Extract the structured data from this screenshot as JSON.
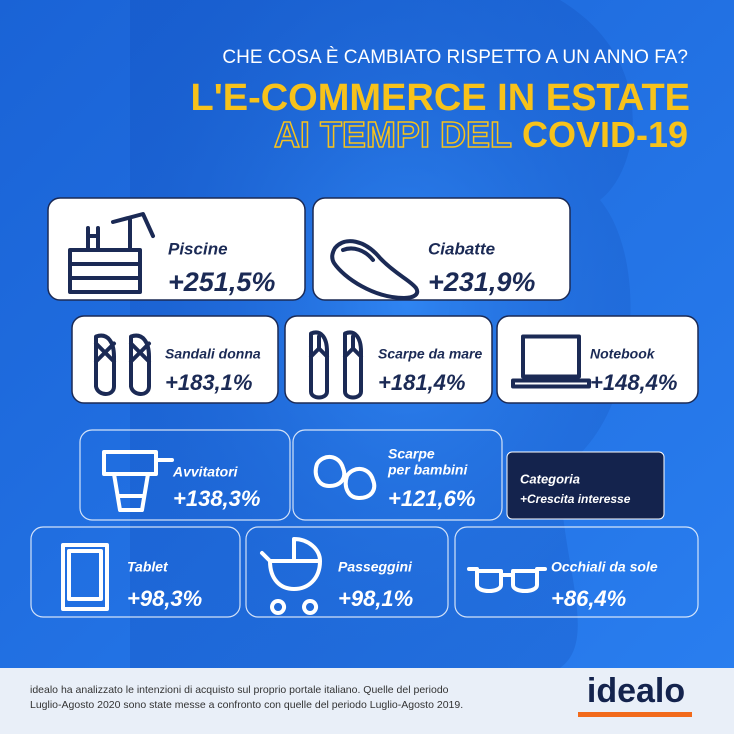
{
  "header": {
    "subtitle": "CHE COSA È CAMBIATO RISPETTO A UN ANNO FA?",
    "title_line1": "L'E-COMMERCE IN ESTATE",
    "title_line2_outline": "AI TEMPI DEL",
    "title_line2_solid": "COVID-19"
  },
  "items": [
    {
      "label": "Piscine",
      "value": "+251,5%"
    },
    {
      "label": "Ciabatte",
      "value": "+231,9%"
    },
    {
      "label": "Sandali donna",
      "value": "+183,1%"
    },
    {
      "label": "Scarpe da mare",
      "value": "+181,4%"
    },
    {
      "label": "Notebook",
      "value": "+148,4%"
    },
    {
      "label": "Avvitatori",
      "value": "+138,3%"
    },
    {
      "label": [
        "Scarpe",
        "per bambini"
      ],
      "value": "+121,6%"
    },
    {
      "label": "Tablet",
      "value": "+98,3%"
    },
    {
      "label": "Passeggini",
      "value": "+98,1%"
    },
    {
      "label": "Occhiali da sole",
      "value": "+86,4%"
    }
  ],
  "legend": {
    "category": "Categoria",
    "growth": "+Crescita interesse"
  },
  "footer": {
    "lines": [
      "idealo ha analizzato le intenzioni di acquisto sul proprio portale italiano. Quelle del periodo",
      "Luglio-Agosto 2020 sono state messe a confronto con quelle del periodo Luglio-Agosto 2019."
    ],
    "brand": "idealo"
  }
}
